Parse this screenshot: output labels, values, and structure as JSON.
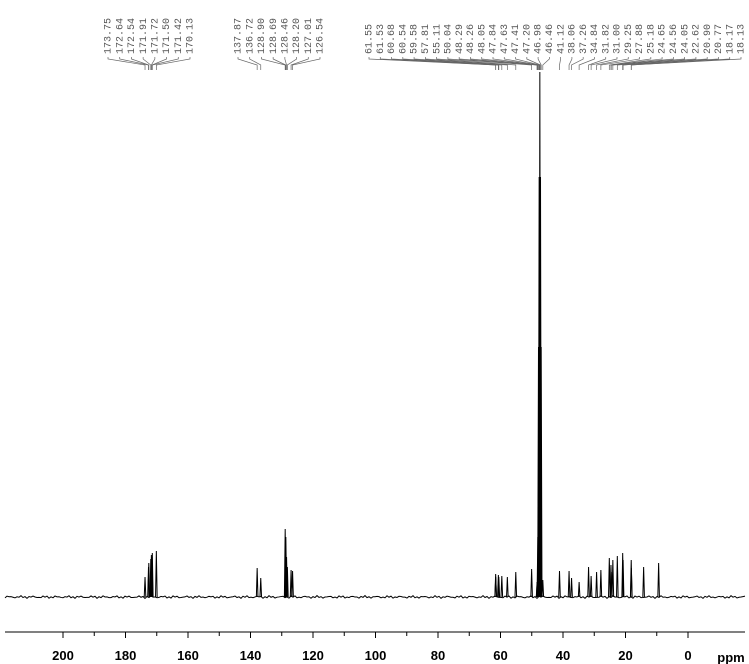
{
  "chart_data": {
    "type": "nmr",
    "x_label": "ppm",
    "xlim": [
      218.56,
      -18.24
    ],
    "xticks": [
      200,
      180,
      160,
      140,
      120,
      100,
      80,
      60,
      40,
      20,
      0
    ],
    "ylim": [
      0,
      530
    ],
    "color": "#000000",
    "peak_labels": [
      "173.75",
      "172.64",
      "172.54",
      "171.91",
      "171.72",
      "171.50",
      "171.42",
      "170.13",
      "137.87",
      "136.72",
      "128.90",
      "128.69",
      "128.46",
      "128.20",
      "127.01",
      "126.54",
      "61.55",
      "61.53",
      "60.68",
      "60.54",
      "59.58",
      "57.81",
      "55.11",
      "50.04",
      "48.29",
      "48.26",
      "48.05",
      "47.84",
      "47.63",
      "47.41",
      "47.20",
      "46.98",
      "46.46",
      "41.12",
      "38.06",
      "37.26",
      "34.84",
      "31.82",
      "31.00",
      "29.25",
      "27.88",
      "25.18",
      "24.65",
      "24.56",
      "24.05",
      "22.62",
      "20.90",
      "20.77",
      "18.17",
      "18.13"
    ],
    "peaks": {
      "ppm": [
        173.75,
        172.64,
        172.54,
        171.91,
        171.72,
        171.5,
        171.42,
        170.13,
        137.87,
        136.72,
        128.9,
        128.69,
        128.46,
        128.2,
        127.01,
        126.54,
        61.55,
        61.53,
        60.68,
        60.54,
        59.58,
        57.81,
        55.11,
        50.04,
        48.29,
        48.26,
        48.05,
        47.84,
        47.63,
        47.41,
        47.2,
        46.98,
        46.46,
        41.12,
        38.06,
        37.26,
        34.84,
        31.82,
        31.0,
        29.25,
        27.88,
        25.18,
        24.65,
        24.56,
        24.05,
        22.62,
        20.9,
        20.77,
        18.17,
        18.13,
        14.2,
        9.4
      ],
      "intensity": [
        20,
        30,
        34,
        38,
        42,
        40,
        44,
        46,
        29,
        19,
        68,
        60,
        40,
        30,
        27,
        26,
        23,
        20,
        22,
        20,
        21,
        20,
        25,
        28,
        15,
        15,
        60,
        250,
        420,
        525,
        420,
        250,
        17,
        26,
        26,
        19,
        15,
        30,
        21,
        25,
        27,
        39,
        32,
        25,
        37,
        41,
        44,
        37,
        37,
        29,
        30,
        34
      ]
    }
  }
}
